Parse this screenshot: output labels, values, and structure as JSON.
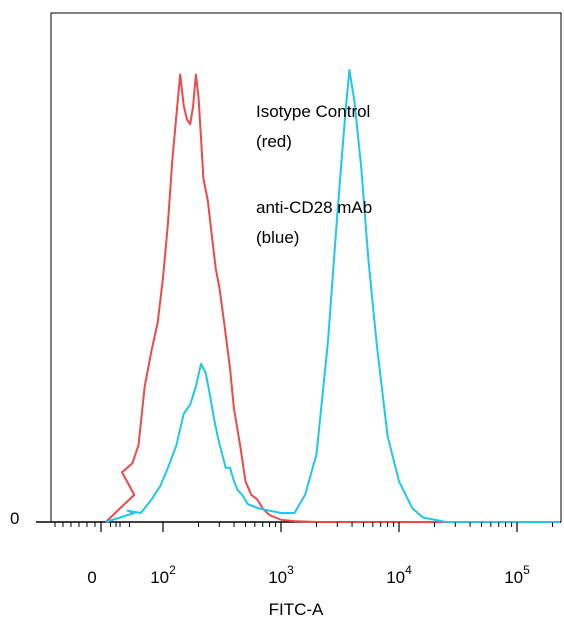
{
  "chart_data": {
    "type": "line",
    "subtype": "flow-cytometry-histogram",
    "xlabel": "FITC-A",
    "ylabel": "",
    "x_scale": "biexponential",
    "xlim": [
      -50,
      250000
    ],
    "y_tick_labels": [
      "0"
    ],
    "x_ticks": [
      {
        "base": "0",
        "exp": ""
      },
      {
        "base": "10",
        "exp": "2"
      },
      {
        "base": "10",
        "exp": "3"
      },
      {
        "base": "10",
        "exp": "4"
      },
      {
        "base": "10",
        "exp": "5"
      }
    ],
    "annotations": [
      "Isotype Control",
      "(red)",
      "anti-CD28 mAb",
      "(blue)"
    ],
    "legend": "annotation top-right inside plot",
    "grid": false,
    "colors": {
      "isotype": "#f04848",
      "anti_cd28": "#1cc8ee"
    },
    "series": [
      {
        "color": "#f04848",
        "x": [
          5,
          20,
          35,
          45,
          55,
          62,
          70,
          80,
          90,
          100,
          110,
          120,
          130,
          140,
          150,
          160,
          170,
          180,
          190,
          200,
          210,
          220,
          240,
          260,
          280,
          300,
          330,
          370,
          400,
          450,
          500,
          560,
          630,
          700,
          800,
          900,
          1000,
          1300,
          2000,
          5000,
          10000,
          100000
        ],
        "y": [
          0,
          0.03,
          0.06,
          0.11,
          0.13,
          0.17,
          0.3,
          0.38,
          0.44,
          0.54,
          0.66,
          0.8,
          0.9,
          0.99,
          0.92,
          0.89,
          0.88,
          0.92,
          0.99,
          0.94,
          0.85,
          0.76,
          0.71,
          0.63,
          0.56,
          0.52,
          0.44,
          0.34,
          0.25,
          0.17,
          0.09,
          0.06,
          0.05,
          0.03,
          0.015,
          0.01,
          0.005,
          0.002,
          0,
          0,
          0,
          0
        ]
      },
      {
        "color": "#1cc8ee",
        "x": [
          5,
          20,
          35,
          50,
          65,
          80,
          95,
          110,
          130,
          150,
          170,
          190,
          210,
          230,
          250,
          270,
          290,
          310,
          340,
          370,
          400,
          430,
          470,
          520,
          580,
          650,
          800,
          1000,
          1300,
          1600,
          2000,
          2500,
          3000,
          3500,
          3800,
          4200,
          4800,
          5500,
          6500,
          8000,
          10000,
          13000,
          16000,
          25000,
          100000,
          250000
        ],
        "y": [
          0,
          0.01,
          0.02,
          0.025,
          0.02,
          0.05,
          0.08,
          0.12,
          0.17,
          0.24,
          0.26,
          0.3,
          0.35,
          0.33,
          0.28,
          0.23,
          0.19,
          0.16,
          0.12,
          0.12,
          0.09,
          0.07,
          0.06,
          0.04,
          0.035,
          0.03,
          0.025,
          0.02,
          0.02,
          0.06,
          0.15,
          0.4,
          0.68,
          0.9,
          1.0,
          0.93,
          0.78,
          0.58,
          0.39,
          0.19,
          0.09,
          0.03,
          0.01,
          0,
          0,
          0
        ]
      }
    ]
  }
}
